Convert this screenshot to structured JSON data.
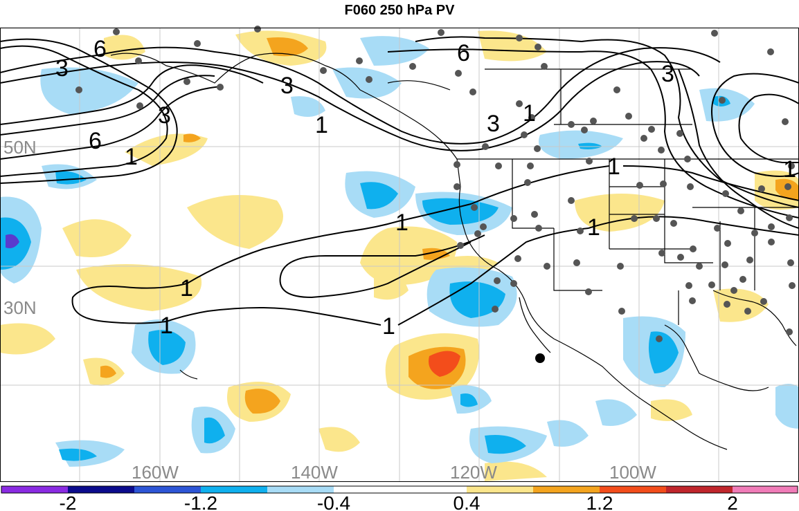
{
  "title": "F060 250 hPa PV",
  "colors": {
    "neg_2": "#8a2be2",
    "neg_1_6": "#0b0b8c",
    "neg_1_2": "#2d55d6",
    "neg_0_8": "#0fb0ee",
    "neg_0_4": "#a8dcf6",
    "zero": "#ffffff",
    "pos_0_4": "#fbe68c",
    "pos_0_8": "#f4a41e",
    "pos_1_2": "#f34d1b",
    "pos_1_6": "#c0262c",
    "pos_2": "#f07cb8",
    "contour": "#000000",
    "grid": "#c8c8c8",
    "axis_label": "#8a8a8a",
    "station": "#555555"
  },
  "map": {
    "lat_labels": [
      "50N",
      "30N"
    ],
    "lon_labels": [
      "160W",
      "140W",
      "120W",
      "100W"
    ],
    "contour_labels": [
      "6",
      "3",
      "3",
      "6",
      "1",
      "6",
      "3",
      "1",
      "3",
      "1",
      "3",
      "1",
      "1",
      "1",
      "1",
      "1",
      "1",
      "1"
    ]
  },
  "colorbar": {
    "labels": [
      "-2",
      "-1.2",
      "-0.4",
      "0.4",
      "1.2",
      "2"
    ]
  }
}
